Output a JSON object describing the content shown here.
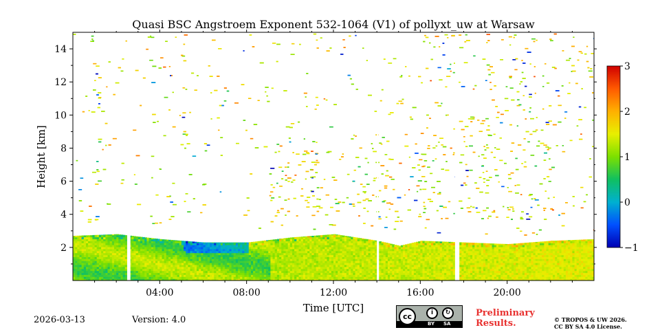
{
  "chart_data": {
    "type": "heatmap",
    "title": "Quasi BSC Angstroem Exponent 532-1064 (V1) of pollyxt_uw at Warsaw",
    "xlabel": "Time [UTC]",
    "ylabel": "Height [km]",
    "xlim": [
      0,
      24
    ],
    "ylim": [
      0,
      15
    ],
    "xticks": [
      4,
      8,
      12,
      16,
      20
    ],
    "xtick_labels": [
      "04:00",
      "08:00",
      "12:00",
      "16:00",
      "20:00"
    ],
    "yticks": [
      2,
      4,
      6,
      8,
      10,
      12,
      14
    ],
    "ytick_labels": [
      "2",
      "4",
      "6",
      "8",
      "10",
      "12",
      "14"
    ],
    "colorbar": {
      "vmin": -1,
      "vmax": 3,
      "ticks": [
        -1,
        0,
        1,
        2,
        3
      ],
      "tick_labels": [
        "−1",
        "0",
        "1",
        "2",
        "3"
      ],
      "colormap": "jet"
    },
    "data_gaps_utc": [
      [
        2.5,
        2.65
      ],
      [
        14.0,
        14.05
      ],
      [
        17.6,
        17.75
      ]
    ],
    "low_layer_top_km": [
      {
        "t": 0.0,
        "h": 2.7
      },
      {
        "t": 2.0,
        "h": 2.8
      },
      {
        "t": 4.0,
        "h": 2.5
      },
      {
        "t": 6.0,
        "h": 2.3
      },
      {
        "t": 8.0,
        "h": 2.3
      },
      {
        "t": 10.0,
        "h": 2.6
      },
      {
        "t": 12.0,
        "h": 2.8
      },
      {
        "t": 14.0,
        "h": 2.4
      },
      {
        "t": 15.0,
        "h": 2.1
      },
      {
        "t": 16.0,
        "h": 2.4
      },
      {
        "t": 18.0,
        "h": 2.3
      },
      {
        "t": 20.0,
        "h": 2.2
      },
      {
        "t": 22.0,
        "h": 2.4
      },
      {
        "t": 24.0,
        "h": 2.5
      }
    ],
    "elevated_aerosol_layer": {
      "t_start": 9.0,
      "t_end": 22.0,
      "h_bottom": 3.7,
      "h_top": 8.5,
      "typical_value": 1.6
    },
    "noise_region_typical_value": 1.5,
    "boundary_layer_typical_value": 1.0
  },
  "footer": {
    "date": "2026-03-13",
    "version": "Version: 4.0",
    "license_badge": {
      "by": "BY",
      "sa": "SA"
    },
    "preliminary_line1": "Preliminary",
    "preliminary_line2": "Results.",
    "license_line1": "© TROPOS & UW 2026.",
    "license_line2": "CC BY SA 4.0 License."
  }
}
